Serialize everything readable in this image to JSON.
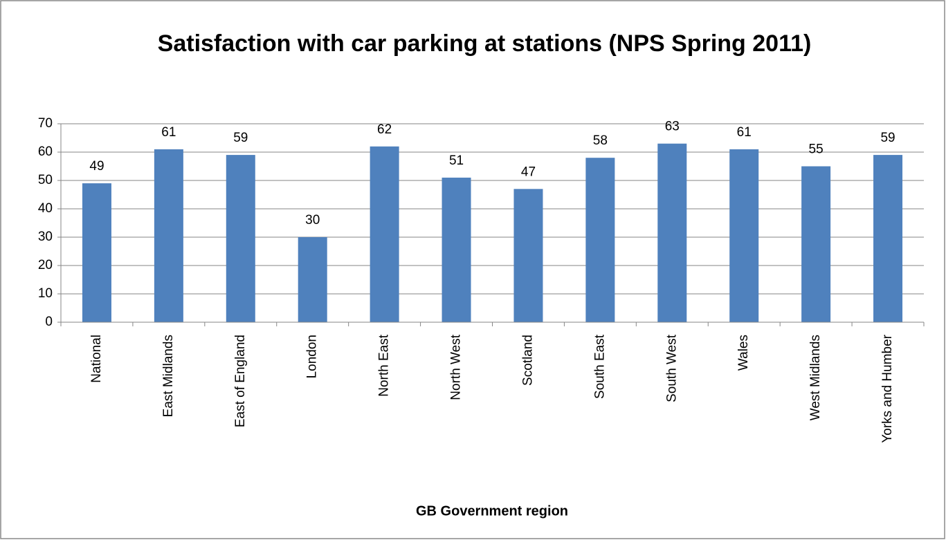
{
  "chart_data": {
    "type": "bar",
    "title": "Satisfaction with car parking at stations (NPS Spring 2011)",
    "x_label": "GB Government region",
    "categories": [
      "National",
      "East Midlands",
      "East of England",
      "London",
      "North East",
      "North West",
      "Scotland",
      "South East",
      "South West",
      "Wales",
      "West Midlands",
      "Yorks and Humber"
    ],
    "values": [
      49,
      61,
      59,
      30,
      62,
      51,
      47,
      58,
      63,
      61,
      55,
      59
    ],
    "color": "#4f81bd",
    "ylim": [
      0,
      70
    ],
    "yticks": [
      0,
      10,
      20,
      30,
      40,
      50,
      60,
      70
    ],
    "grid": true
  }
}
